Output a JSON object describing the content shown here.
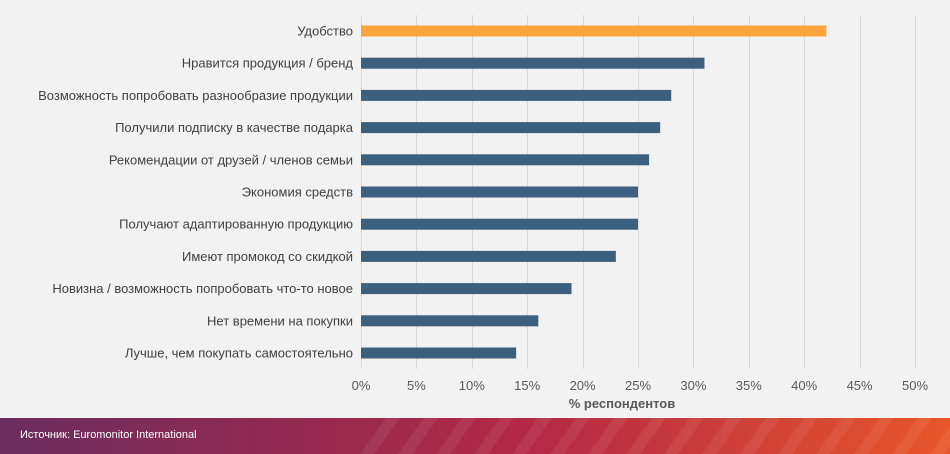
{
  "chart_data": {
    "type": "bar",
    "orientation": "horizontal",
    "categories": [
      "Удобство",
      "Нравится продукция / бренд",
      "Возможность попробовать разнообразие продукции",
      "Получили подписку в качестве подарка",
      "Рекомендации от друзей / членов семьи",
      "Экономия средств",
      "Получают адаптированную продукцию",
      "Имеют промокод со скидкой",
      "Новизна / возможность попробовать что-то новое",
      "Нет времени на покупки",
      "Лучше, чем покупать самостоятельно"
    ],
    "values": [
      42,
      31,
      28,
      27,
      26,
      25,
      25,
      23,
      19,
      16,
      14
    ],
    "xlabel": "% респондентов",
    "xlim": [
      0,
      50
    ],
    "ticks": [
      "0%",
      "5%",
      "10%",
      "15%",
      "20%",
      "25%",
      "30%",
      "35%",
      "40%",
      "45%",
      "50%"
    ],
    "tick_values": [
      0,
      5,
      10,
      15,
      20,
      25,
      30,
      35,
      40,
      45,
      50
    ],
    "grid": true,
    "colors": {
      "highlight": "#f9a53b",
      "default": "#3d5f7e"
    },
    "highlight_index": 0
  },
  "footer": {
    "source": "Источник: Euromonitor International",
    "colors": {
      "start": "#6b2d5e",
      "mid": "#b32846",
      "end": "#e8562a"
    }
  }
}
